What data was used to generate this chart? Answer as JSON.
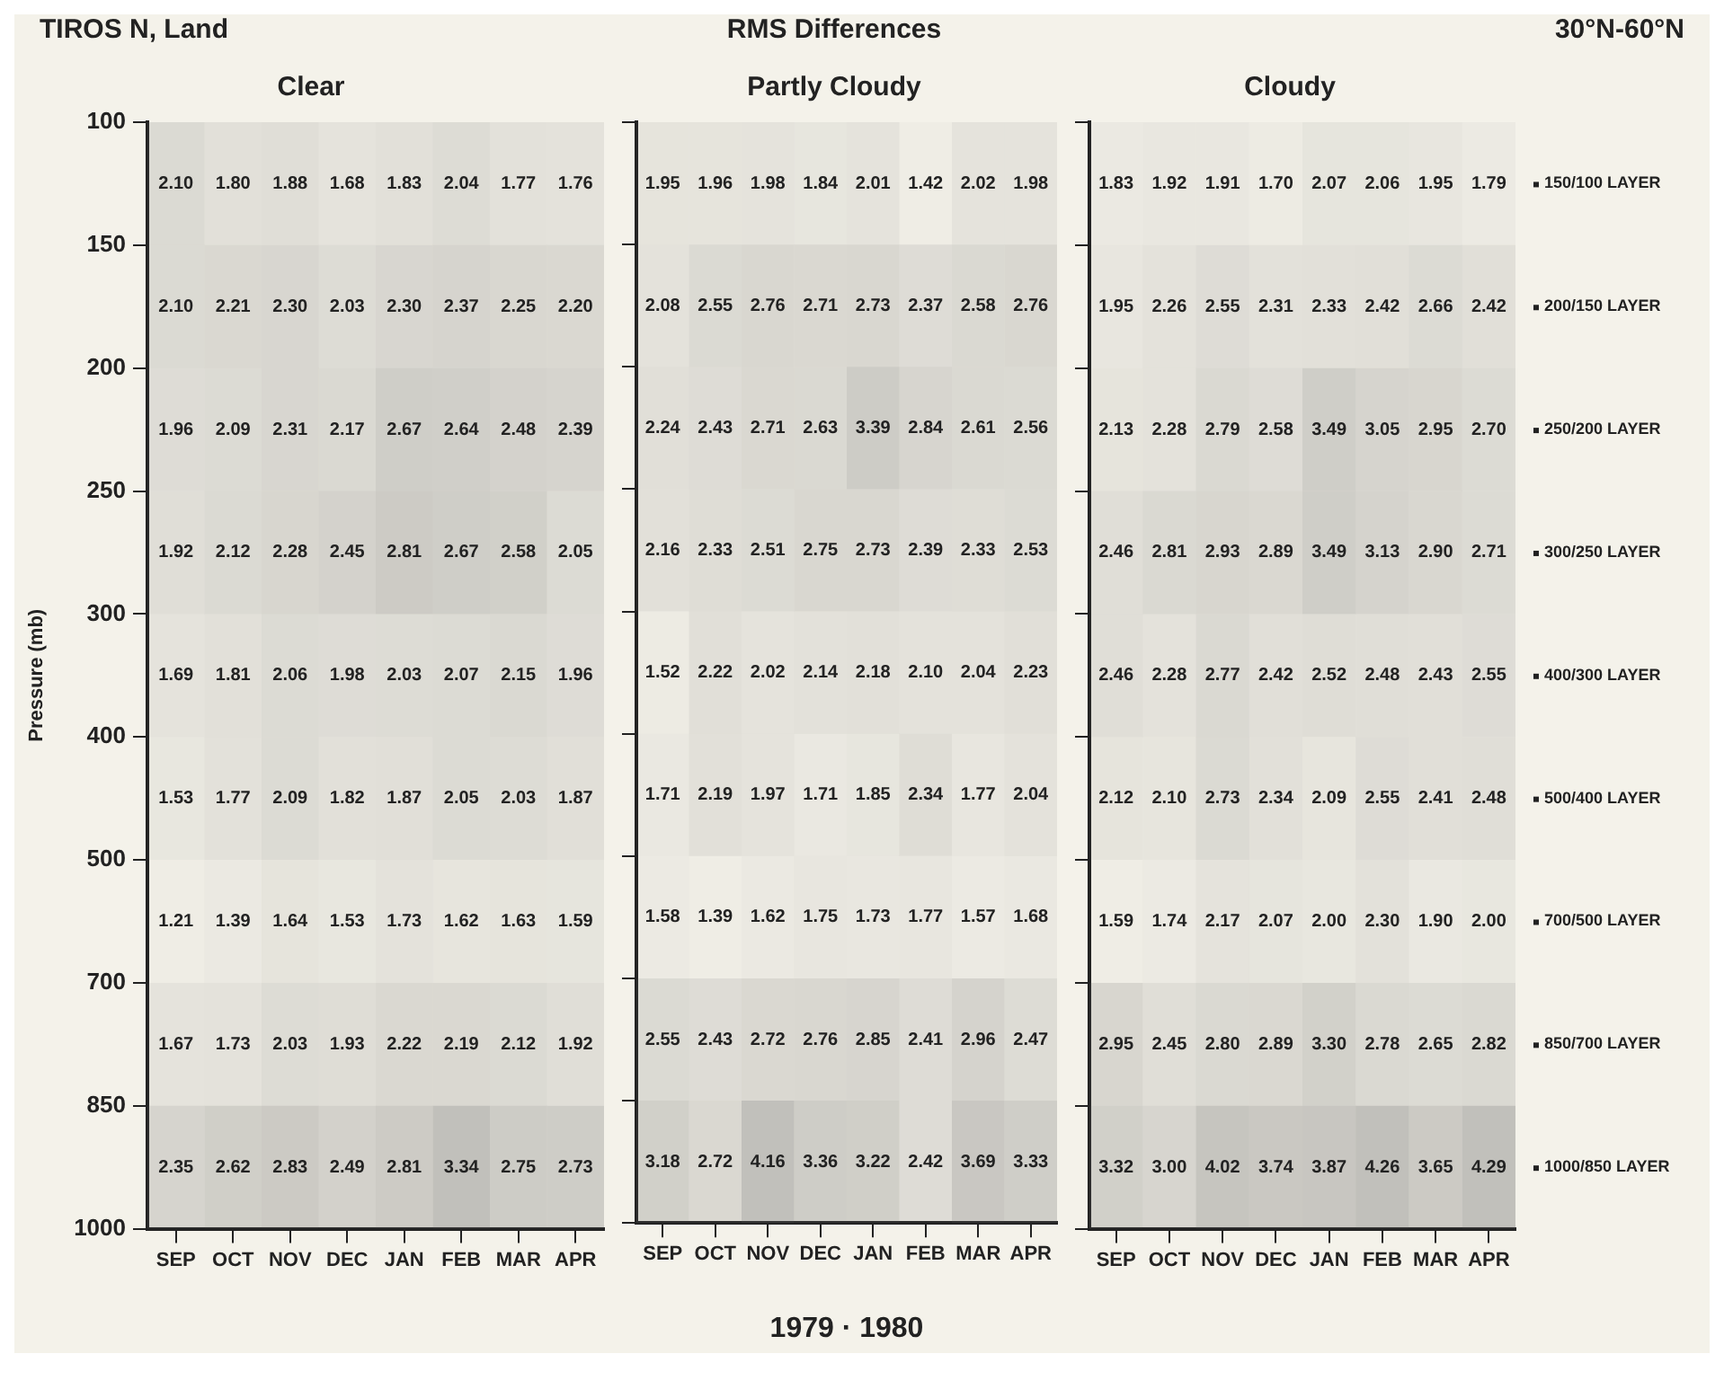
{
  "chart_data": [
    {
      "type": "heatmap",
      "title": "Clear",
      "annotations": [
        "TIROS N, Land",
        "100",
        "150",
        "200",
        "250",
        "300",
        "400",
        "500",
        "700",
        "850",
        "1000"
      ],
      "ylabel": "Pressure (mb)",
      "categories": [
        "SEP",
        "OCT",
        "NOV",
        "DEC",
        "JAN",
        "FEB",
        "MAR",
        "APR"
      ],
      "y_categories": [
        null,
        null,
        null,
        null,
        null,
        null,
        null,
        null,
        null
      ],
      "cells": [
        [
          2.1,
          1.8,
          1.88,
          1.68,
          1.83,
          2.04,
          1.77,
          1.76
        ],
        [
          2.1,
          2.21,
          2.3,
          2.03,
          2.3,
          2.37,
          2.25,
          2.2
        ],
        [
          1.96,
          2.09,
          2.31,
          2.17,
          2.67,
          2.64,
          2.48,
          2.39
        ],
        [
          1.92,
          2.12,
          2.28,
          2.45,
          2.81,
          2.67,
          2.58,
          2.05
        ],
        [
          1.69,
          1.81,
          2.06,
          1.98,
          2.03,
          2.07,
          2.15,
          1.96
        ],
        [
          1.53,
          1.77,
          2.09,
          1.82,
          1.87,
          2.05,
          2.03,
          1.87
        ],
        [
          1.21,
          1.39,
          1.64,
          1.53,
          1.73,
          1.62,
          1.63,
          1.59
        ],
        [
          1.67,
          1.73,
          2.03,
          1.93,
          2.22,
          2.19,
          2.12,
          1.92
        ],
        [
          2.35,
          2.62,
          2.83,
          2.49,
          2.81,
          3.34,
          2.75,
          2.73
        ]
      ],
      "cell_labels": [
        [
          "2.10",
          "1.80",
          "1.88",
          "1.68",
          "1.83",
          "2.04",
          "1.77",
          "1.76"
        ],
        [
          "2.10",
          "2.21",
          "2.30",
          "2.03",
          "2.30",
          "2.37",
          "2.25",
          "2.20"
        ],
        [
          "1.96",
          "2.09",
          "2.31",
          "2.17",
          "2.67",
          "2.64",
          "2.48",
          "2.39"
        ],
        [
          "1.92",
          "2.12",
          "2.28",
          "2.45",
          "2.81",
          "2.67",
          "2.58",
          "2.05"
        ],
        [
          "1.69",
          "1.81",
          "2.06",
          "1.98",
          "2.03",
          "2.07",
          "2.15",
          "1.96"
        ],
        [
          "1.53",
          "1.77",
          "2.09",
          "1.82",
          "1.87",
          "2.05",
          "2.03",
          "1.87"
        ],
        [
          "1.21",
          "1.39",
          "1.64",
          "1.53",
          "1.73",
          "1.62",
          "1.63",
          "1.59"
        ],
        [
          "1.67",
          "1.73",
          "2.03",
          "1.93",
          "2.22",
          "2.19",
          "2.12",
          "1.92"
        ],
        [
          "2.35",
          "2.62",
          "2.83",
          "2.49",
          "2.81",
          "3.34",
          "2.75",
          "2.73"
        ]
      ]
    },
    {
      "type": "heatmap",
      "title": "Partly Cloudy",
      "annotations": [
        "RMS Differences"
      ],
      "xlabel": "1979 · 1980",
      "categories": [
        "SEP",
        "OCT",
        "NOV",
        "DEC",
        "JAN",
        "FEB",
        "MAR",
        "APR"
      ],
      "y_categories": [
        null,
        null,
        null,
        null,
        null,
        null,
        null,
        null,
        null
      ],
      "cells": [
        [
          1.95,
          1.96,
          1.98,
          1.84,
          2.01,
          1.42,
          2.02,
          1.98
        ],
        [
          2.08,
          2.55,
          2.76,
          2.71,
          2.73,
          2.37,
          2.58,
          2.76
        ],
        [
          2.24,
          2.43,
          2.71,
          2.63,
          3.39,
          2.84,
          2.61,
          2.56
        ],
        [
          2.16,
          2.33,
          2.51,
          2.75,
          2.73,
          2.39,
          2.33,
          2.53
        ],
        [
          1.52,
          2.22,
          2.02,
          2.14,
          2.18,
          2.1,
          2.04,
          2.23
        ],
        [
          1.71,
          2.19,
          1.97,
          1.71,
          1.85,
          2.34,
          1.77,
          2.04
        ],
        [
          1.58,
          1.39,
          1.62,
          1.75,
          1.73,
          1.77,
          1.57,
          1.68
        ],
        [
          2.55,
          2.43,
          2.72,
          2.76,
          2.85,
          2.41,
          2.96,
          2.47
        ],
        [
          3.18,
          2.72,
          4.16,
          3.36,
          3.22,
          2.42,
          3.69,
          3.33
        ]
      ],
      "cell_labels": [
        [
          "1.95",
          "1.96",
          "1.98",
          "1.84",
          "2.01",
          "1.42",
          "2.02",
          "1.98"
        ],
        [
          "2.08",
          "2.55",
          "2.76",
          "2.71",
          "2.73",
          "2.37",
          "2.58",
          "2.76"
        ],
        [
          "2.24",
          "2.43",
          "2.71",
          "2.63",
          "3.39",
          "2.84",
          "2.61",
          "2.56"
        ],
        [
          "2.16",
          "2.33",
          "2.51",
          "2.75",
          "2.73",
          "2.39",
          "2.33",
          "2.53"
        ],
        [
          "1.52",
          "2.22",
          "2.02",
          "2.14",
          "2.18",
          "2.10",
          "2.04",
          "2.23"
        ],
        [
          "1.71",
          "2.19",
          "1.97",
          "1.71",
          "1.85",
          "2.34",
          "1.77",
          "2.04"
        ],
        [
          "1.58",
          "1.39",
          "1.62",
          "1.75",
          "1.73",
          "1.77",
          "1.57",
          "1.68"
        ],
        [
          "2.55",
          "2.43",
          "2.72",
          "2.76",
          "2.85",
          "2.41",
          "2.96",
          "2.47"
        ],
        [
          "3.18",
          "2.72",
          "4.16",
          "3.36",
          "3.22",
          "2.42",
          "3.69",
          "3.33"
        ]
      ]
    },
    {
      "type": "heatmap",
      "title": "Cloudy",
      "annotations": [
        "30°N-60°N"
      ],
      "categories": [
        "SEP",
        "OCT",
        "NOV",
        "DEC",
        "JAN",
        "FEB",
        "MAR",
        "APR"
      ],
      "y_categories": [
        null,
        null,
        null,
        null,
        null,
        null,
        null,
        null,
        null
      ],
      "y2_categories": [
        "150/100 LAYER",
        "200/150 LAYER",
        "250/200 LAYER",
        "300/250 LAYER",
        "400/300 LAYER",
        "500/400 LAYER",
        "700/500 LAYER",
        "850/700 LAYER",
        "1000/850 LAYER"
      ],
      "cells": [
        [
          1.83,
          1.92,
          1.91,
          1.7,
          2.07,
          2.06,
          1.95,
          1.79
        ],
        [
          1.95,
          2.26,
          2.55,
          2.31,
          2.33,
          2.42,
          2.66,
          2.42
        ],
        [
          2.13,
          2.28,
          2.79,
          2.58,
          3.49,
          3.05,
          2.95,
          2.7
        ],
        [
          2.46,
          2.81,
          2.93,
          2.89,
          3.49,
          3.13,
          2.9,
          2.71
        ],
        [
          2.46,
          2.28,
          2.77,
          2.42,
          2.52,
          2.48,
          2.43,
          2.55
        ],
        [
          2.12,
          2.1,
          2.73,
          2.34,
          2.09,
          2.55,
          2.41,
          2.48
        ],
        [
          1.59,
          1.74,
          2.17,
          2.07,
          2.0,
          2.3,
          1.9,
          2.0
        ],
        [
          2.95,
          2.45,
          2.8,
          2.89,
          3.3,
          2.78,
          2.65,
          2.82
        ],
        [
          3.32,
          3.0,
          4.02,
          3.74,
          3.87,
          4.26,
          3.65,
          4.29
        ]
      ],
      "cell_labels": [
        [
          "1.83",
          "1.92",
          "1.91",
          "1.70",
          "2.07",
          "2.06",
          "1.95",
          "1.79"
        ],
        [
          "1.95",
          "2.26",
          "2.55",
          "2.31",
          "2.33",
          "2.42",
          "2.66",
          "2.42"
        ],
        [
          "2.13",
          "2.28",
          "2.79",
          "2.58",
          "3.49",
          "3.05",
          "2.95",
          "2.70"
        ],
        [
          "2.46",
          "2.81",
          "2.93",
          "2.89",
          "3.49",
          "3.13",
          "2.90",
          "2.71"
        ],
        [
          "2.46",
          "2.28",
          "2.77",
          "2.42",
          "2.52",
          "2.48",
          "2.43",
          "2.55"
        ],
        [
          "2.12",
          "2.10",
          "2.73",
          "2.34",
          "2.09",
          "2.55",
          "2.41",
          "2.48"
        ],
        [
          "1.59",
          "1.74",
          "2.17",
          "2.07",
          "2.00",
          "2.30",
          "1.90",
          "2.00"
        ],
        [
          "2.95",
          "2.45",
          "2.80",
          "2.89",
          "3.30",
          "2.78",
          "2.65",
          "2.82"
        ],
        [
          "3.32",
          "3.00",
          "4.02",
          "3.74",
          "3.87",
          "4.26",
          "3.65",
          "4.29"
        ]
      ]
    }
  ]
}
